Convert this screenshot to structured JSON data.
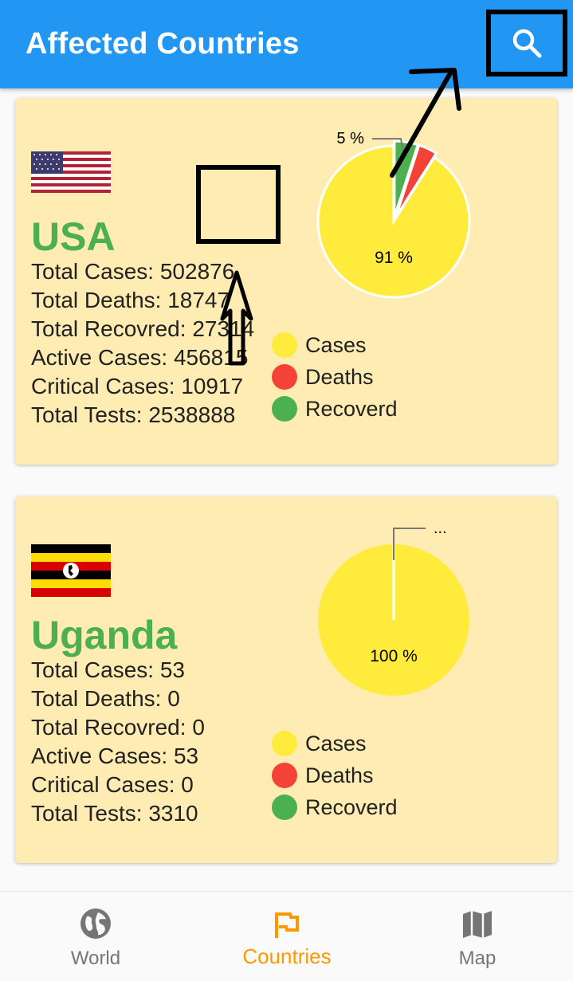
{
  "appbar": {
    "title": "Affected Countries",
    "search_icon": "search-icon"
  },
  "legend": {
    "cases": "Cases",
    "deaths": "Deaths",
    "recovered": "Recoverd"
  },
  "colors": {
    "primary": "#2196f3",
    "cases": "#ffeb3b",
    "deaths": "#f44336",
    "recovered": "#4caf50",
    "card": "#ffecb3",
    "active_nav": "#ff9800"
  },
  "countries": [
    {
      "name": "USA",
      "flag": "us-flag",
      "stats": {
        "total_cases": "Total Cases: 502876",
        "total_deaths": "Total Deaths: 18747",
        "total_recovered": "Total Recovred: 27314",
        "active_cases": "Active Cases: 456815",
        "critical_cases": "Critical Cases: 10917",
        "total_tests": "Total Tests: 2538888"
      },
      "chart_data": {
        "type": "pie",
        "categories": [
          "Cases",
          "Deaths",
          "Recoverd"
        ],
        "values": [
          91,
          4,
          5
        ],
        "labels": {
          "main": "91 %",
          "callout": "5 %"
        }
      }
    },
    {
      "name": "Uganda",
      "flag": "uganda-flag",
      "stats": {
        "total_cases": "Total Cases: 53",
        "total_deaths": "Total Deaths: 0",
        "total_recovered": "Total Recovred: 0",
        "active_cases": "Active Cases: 53",
        "critical_cases": "Critical Cases: 0",
        "total_tests": "Total Tests: 3310"
      },
      "chart_data": {
        "type": "pie",
        "categories": [
          "Cases",
          "Deaths",
          "Recoverd"
        ],
        "values": [
          100,
          0,
          0
        ],
        "labels": {
          "main": "100 %",
          "callout": "..."
        }
      }
    }
  ],
  "bottom_nav": [
    {
      "label": "World",
      "icon": "globe-icon",
      "active": false
    },
    {
      "label": "Countries",
      "icon": "flag-icon",
      "active": true
    },
    {
      "label": "Map",
      "icon": "map-icon",
      "active": false
    }
  ]
}
